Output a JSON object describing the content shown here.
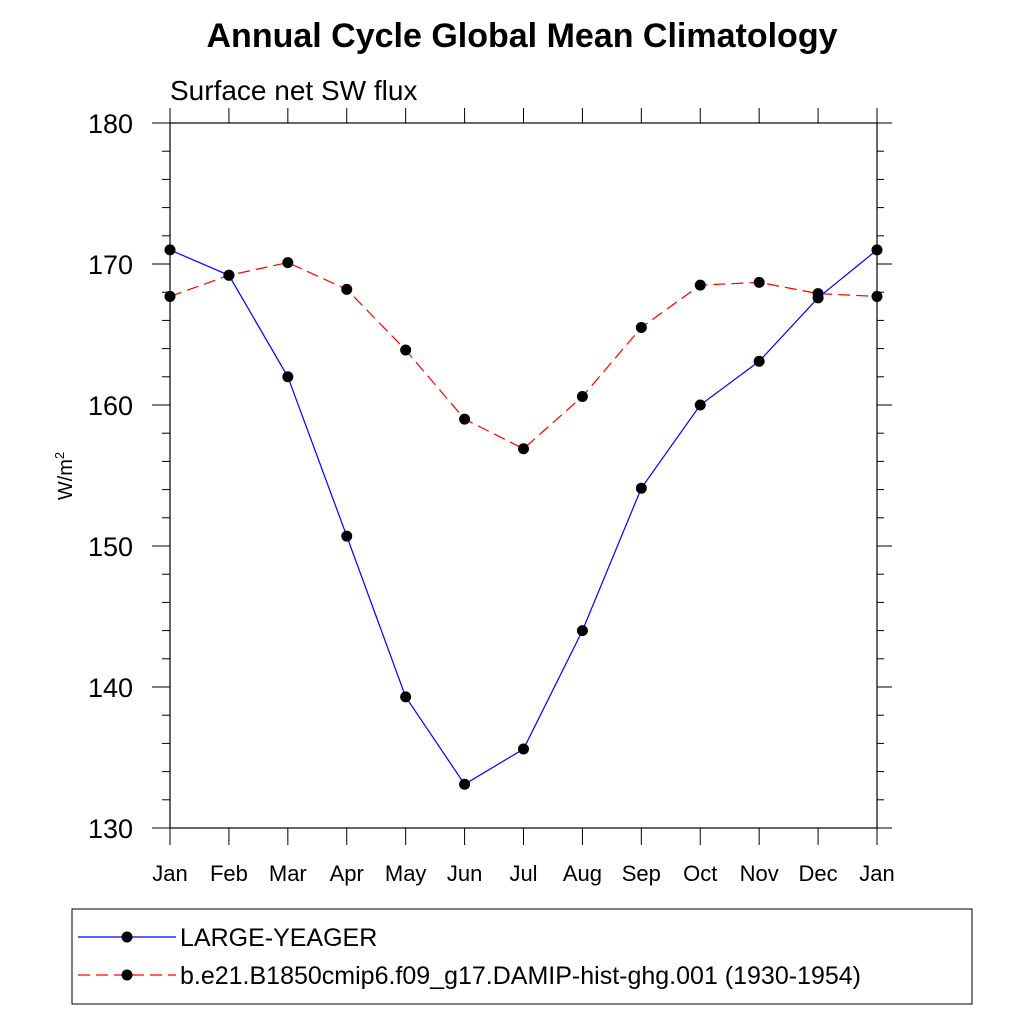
{
  "chart_data": {
    "type": "line",
    "title": "Annual Cycle Global Mean Climatology",
    "subtitle": "Surface net SW flux",
    "xlabel": "",
    "ylabel_base": "W/m",
    "ylabel_sup": "2",
    "ylim": [
      130,
      180
    ],
    "yticks": [
      130,
      140,
      150,
      160,
      170,
      180
    ],
    "y_minor_step": 2,
    "grid": false,
    "legend_position": "bottom",
    "categories": [
      "Jan",
      "Feb",
      "Mar",
      "Apr",
      "May",
      "Jun",
      "Jul",
      "Aug",
      "Sep",
      "Oct",
      "Nov",
      "Dec",
      "Jan"
    ],
    "series": [
      {
        "name": "LARGE-YEAGER",
        "color": "#0000ff",
        "dashed": false,
        "values": [
          171.0,
          169.2,
          162.0,
          150.7,
          139.3,
          133.1,
          135.6,
          144.0,
          154.1,
          160.0,
          163.1,
          167.6,
          171.0
        ]
      },
      {
        "name": "b.e21.B1850cmip6.f09_g17.DAMIP-hist-ghg.001 (1930-1954)",
        "color": "#ff0000",
        "dashed": true,
        "values": [
          167.7,
          169.2,
          170.1,
          168.2,
          163.9,
          159.0,
          156.9,
          160.6,
          165.5,
          168.5,
          168.7,
          167.9,
          167.7
        ]
      }
    ]
  }
}
